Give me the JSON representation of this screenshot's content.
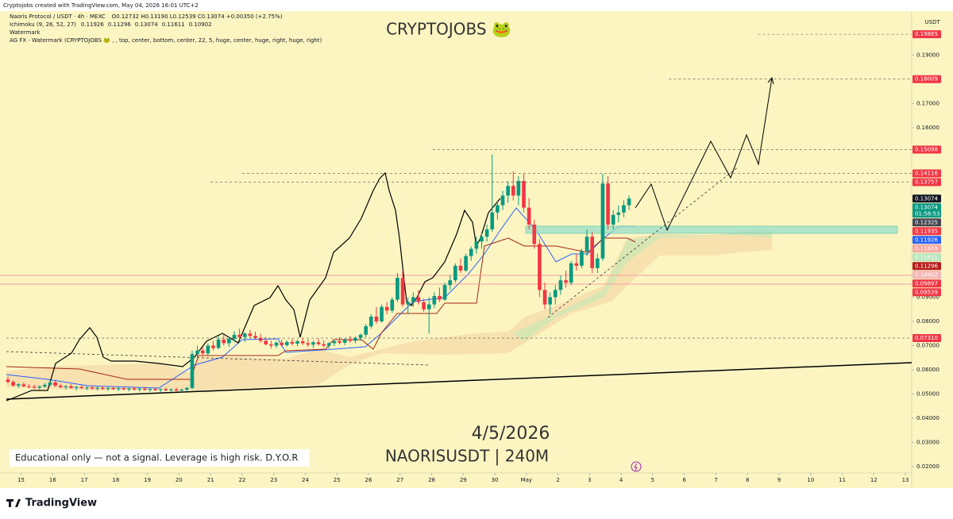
{
  "header": {
    "credit": "Cryptojobs created with TradingView.com, May 04, 2026 16:01 UTC+2",
    "symbol": "Naoris Protocol / USDT · 4h · MEXC",
    "ohlc": "O0.12732 H0.13190 L0.12539 C0.13074 +0.00350 (+2.75%)",
    "ichimoku": {
      "name": "Ichimoku (9, 26, 52, 27)",
      "values": [
        {
          "text": "0.11926",
          "color": "#2962ff"
        },
        {
          "text": "0.11296",
          "color": "#b71c1c"
        },
        {
          "text": "0.13074",
          "color": "#43a047"
        },
        {
          "text": "0.11611",
          "color": "#a5d6a7"
        },
        {
          "text": "0.10902",
          "color": "#ef9a9a"
        }
      ]
    },
    "watermark": "Watermark",
    "agfx": "AG FX - Watermark (CRYPTOJOBS 🐸 , , top, center, bottom, center, 22, 5, huge, center, huge, right, huge, right)",
    "currency": "USDT"
  },
  "watermark_title": "CRYPTOJOBS 🐸",
  "date_text": "4/5/2026",
  "pair_text": "NAORISUSDT | 240M",
  "disclaimer": "Educational only — not a signal. Leverage is high risk. D.Y.O.R",
  "footer": "TradingView",
  "chart_data": {
    "type": "candlestick",
    "up_color": "#089981",
    "down_color": "#f23645",
    "grid": false,
    "xlim": [
      -0.3,
      171.7
    ],
    "xticks": [
      {
        "value": 2.5,
        "label": "15"
      },
      {
        "value": 8.5,
        "label": "16"
      },
      {
        "value": 14.5,
        "label": "17"
      },
      {
        "value": 20.5,
        "label": "18"
      },
      {
        "value": 26.5,
        "label": "19"
      },
      {
        "value": 32.5,
        "label": "20"
      },
      {
        "value": 38.5,
        "label": "21"
      },
      {
        "value": 44.5,
        "label": "22"
      },
      {
        "value": 50.5,
        "label": "23"
      },
      {
        "value": 56.5,
        "label": "24"
      },
      {
        "value": 62.5,
        "label": "25"
      },
      {
        "value": 68.5,
        "label": "26"
      },
      {
        "value": 74.5,
        "label": "27"
      },
      {
        "value": 80.5,
        "label": "28"
      },
      {
        "value": 86.5,
        "label": "29"
      },
      {
        "value": 92.5,
        "label": "30"
      },
      {
        "value": 98.5,
        "label": "May"
      },
      {
        "value": 104.5,
        "label": "2"
      },
      {
        "value": 110.5,
        "label": "3"
      },
      {
        "value": 116.5,
        "label": "4"
      },
      {
        "value": 122.5,
        "label": "5"
      },
      {
        "value": 128.5,
        "label": "6"
      },
      {
        "value": 134.5,
        "label": "7"
      },
      {
        "value": 140.5,
        "label": "8"
      },
      {
        "value": 146.5,
        "label": "9"
      },
      {
        "value": 152.5,
        "label": "10"
      },
      {
        "value": 158.5,
        "label": "11"
      },
      {
        "value": 164.5,
        "label": "12"
      },
      {
        "value": 170.5,
        "label": "13"
      }
    ],
    "ylim": [
      0.01115,
      0.2082
    ],
    "yticks": [
      {
        "value": 0.19,
        "label": "0.19000"
      },
      {
        "value": 0.17,
        "label": "0.17000"
      },
      {
        "value": 0.16,
        "label": "0.16000"
      },
      {
        "value": 0.09,
        "label": "0.09000"
      },
      {
        "value": 0.08,
        "label": "0.08000"
      },
      {
        "value": 0.07,
        "label": "0.07000"
      },
      {
        "value": 0.06,
        "label": "0.06000"
      },
      {
        "value": 0.05,
        "label": "0.05000"
      },
      {
        "value": 0.04,
        "label": "0.04000"
      },
      {
        "value": 0.03,
        "label": "0.03000"
      },
      {
        "value": 0.02,
        "label": "0.02000"
      }
    ],
    "price_labels": [
      {
        "value": 0.19865,
        "label": "0.19865",
        "color": "#f23645",
        "from": 142.5
      },
      {
        "value": 0.18009,
        "label": "0.18009",
        "color": "#f23645",
        "from": 125.6
      },
      {
        "value": 0.15098,
        "label": "0.15098",
        "color": "#f23645",
        "from": 80.7
      },
      {
        "value": 0.14116,
        "label": "0.14116",
        "color": "#f23645",
        "from": 44.5
      },
      {
        "value": 0.13757,
        "label": "0.13757",
        "color": "#f23645",
        "from": 38.5
      },
      {
        "value": 0.13074,
        "label": "0.13074",
        "color": "#131722"
      },
      {
        "value": 0.13074,
        "label": "0.13074",
        "color": "#089981",
        "countdown": "01:58:53"
      },
      {
        "value": 0.12325,
        "label": "0.12325",
        "color": "#434651"
      },
      {
        "value": 0.11935,
        "label": "0.11935",
        "color": "#f23645"
      },
      {
        "value": 0.11926,
        "label": "0.11926",
        "color": "#2962ff"
      },
      {
        "value": 0.11659,
        "label": "0.11659",
        "color": "#f7a8a0"
      },
      {
        "value": 0.11611,
        "label": "0.11611",
        "color": "#b9e4bc"
      },
      {
        "value": 0.11296,
        "label": "0.11296",
        "color": "#b71c1c"
      },
      {
        "value": 0.10902,
        "label": "0.10902",
        "color": "#f5b5b5"
      },
      {
        "value": 0.09897,
        "label": "0.09897",
        "color": "#f23645"
      },
      {
        "value": 0.09539,
        "label": "0.09539",
        "color": "#f23645"
      },
      {
        "value": 0.0731,
        "label": "0.07310",
        "color": "#f23645",
        "from": -0.3
      }
    ],
    "candles": [
      [
        0.056,
        0.0572,
        0.0545,
        0.055
      ],
      [
        0.055,
        0.0556,
        0.053,
        0.0535
      ],
      [
        0.0535,
        0.0545,
        0.0525,
        0.054
      ],
      [
        0.054,
        0.0548,
        0.0528,
        0.0532
      ],
      [
        0.0532,
        0.054,
        0.0522,
        0.053
      ],
      [
        0.053,
        0.0538,
        0.052,
        0.0526
      ],
      [
        0.0526,
        0.0535,
        0.0518,
        0.0531
      ],
      [
        0.0531,
        0.0545,
        0.0525,
        0.0538
      ],
      [
        0.0538,
        0.056,
        0.0532,
        0.0548
      ],
      [
        0.0548,
        0.0555,
        0.053,
        0.0534
      ],
      [
        0.0534,
        0.0542,
        0.0524,
        0.0528
      ],
      [
        0.0528,
        0.0536,
        0.0518,
        0.0532
      ],
      [
        0.0532,
        0.054,
        0.0522,
        0.0525
      ],
      [
        0.0525,
        0.0533,
        0.0515,
        0.0529
      ],
      [
        0.0529,
        0.0538,
        0.0521,
        0.0524
      ],
      [
        0.0524,
        0.0532,
        0.0516,
        0.0527
      ],
      [
        0.0527,
        0.0534,
        0.0519,
        0.0522
      ],
      [
        0.0522,
        0.053,
        0.0514,
        0.0526
      ],
      [
        0.0526,
        0.0533,
        0.0518,
        0.0521
      ],
      [
        0.0521,
        0.0529,
        0.0513,
        0.0525
      ],
      [
        0.0525,
        0.0532,
        0.0517,
        0.052
      ],
      [
        0.052,
        0.0528,
        0.0512,
        0.0524
      ],
      [
        0.0524,
        0.0531,
        0.0516,
        0.0519
      ],
      [
        0.0519,
        0.0527,
        0.0511,
        0.0523
      ],
      [
        0.0523,
        0.053,
        0.0515,
        0.0518
      ],
      [
        0.0518,
        0.0526,
        0.051,
        0.0522
      ],
      [
        0.0522,
        0.0529,
        0.0514,
        0.0517
      ],
      [
        0.0517,
        0.0525,
        0.0509,
        0.0521
      ],
      [
        0.0521,
        0.0528,
        0.0513,
        0.0516
      ],
      [
        0.0516,
        0.0524,
        0.0508,
        0.052
      ],
      [
        0.052,
        0.0527,
        0.0512,
        0.0515
      ],
      [
        0.0515,
        0.0523,
        0.0507,
        0.0519
      ],
      [
        0.0519,
        0.0526,
        0.0511,
        0.0514
      ],
      [
        0.0514,
        0.0522,
        0.0506,
        0.0518
      ],
      [
        0.0518,
        0.053,
        0.051,
        0.0525
      ],
      [
        0.0525,
        0.068,
        0.052,
        0.0665
      ],
      [
        0.0665,
        0.07,
        0.064,
        0.068
      ],
      [
        0.068,
        0.0695,
        0.0655,
        0.0668
      ],
      [
        0.0668,
        0.071,
        0.066,
        0.07
      ],
      [
        0.07,
        0.072,
        0.068,
        0.069
      ],
      [
        0.069,
        0.074,
        0.0685,
        0.0725
      ],
      [
        0.0725,
        0.0745,
        0.07,
        0.071
      ],
      [
        0.071,
        0.0735,
        0.0695,
        0.0728
      ],
      [
        0.0728,
        0.076,
        0.0715,
        0.0745
      ],
      [
        0.0745,
        0.077,
        0.0725,
        0.0735
      ],
      [
        0.0735,
        0.0755,
        0.0715,
        0.075
      ],
      [
        0.075,
        0.0765,
        0.073,
        0.074
      ],
      [
        0.074,
        0.0758,
        0.0725,
        0.0732
      ],
      [
        0.0732,
        0.0748,
        0.0712,
        0.072
      ],
      [
        0.072,
        0.0735,
        0.07,
        0.0705
      ],
      [
        0.0705,
        0.072,
        0.0688,
        0.07
      ],
      [
        0.07,
        0.0718,
        0.069,
        0.0712
      ],
      [
        0.0712,
        0.0725,
        0.0695,
        0.0702
      ],
      [
        0.0702,
        0.0722,
        0.0696,
        0.0715
      ],
      [
        0.0715,
        0.0728,
        0.07,
        0.0708
      ],
      [
        0.0708,
        0.0725,
        0.0698,
        0.0718
      ],
      [
        0.0718,
        0.073,
        0.0702,
        0.071
      ],
      [
        0.071,
        0.0726,
        0.0695,
        0.0704
      ],
      [
        0.0704,
        0.072,
        0.069,
        0.0714
      ],
      [
        0.0714,
        0.0728,
        0.07,
        0.0706
      ],
      [
        0.0706,
        0.0722,
        0.0692,
        0.07
      ],
      [
        0.07,
        0.0716,
        0.0688,
        0.071
      ],
      [
        0.071,
        0.0725,
        0.0698,
        0.0718
      ],
      [
        0.0718,
        0.0735,
        0.0705,
        0.0712
      ],
      [
        0.0712,
        0.073,
        0.0702,
        0.0725
      ],
      [
        0.0725,
        0.074,
        0.0712,
        0.072
      ],
      [
        0.072,
        0.0738,
        0.071,
        0.0732
      ],
      [
        0.0732,
        0.075,
        0.072,
        0.0745
      ],
      [
        0.0745,
        0.079,
        0.0735,
        0.078
      ],
      [
        0.078,
        0.083,
        0.077,
        0.082
      ],
      [
        0.082,
        0.086,
        0.079,
        0.08
      ],
      [
        0.08,
        0.087,
        0.0795,
        0.086
      ],
      [
        0.086,
        0.088,
        0.083,
        0.0845
      ],
      [
        0.0845,
        0.09,
        0.0835,
        0.089
      ],
      [
        0.089,
        0.1,
        0.088,
        0.098
      ],
      [
        0.098,
        0.101,
        0.086,
        0.087
      ],
      [
        0.087,
        0.09,
        0.083,
        0.088
      ],
      [
        0.088,
        0.092,
        0.086,
        0.09
      ],
      [
        0.09,
        0.093,
        0.087,
        0.088
      ],
      [
        0.088,
        0.0895,
        0.084,
        0.085
      ],
      [
        0.085,
        0.09,
        0.075,
        0.087
      ],
      [
        0.087,
        0.092,
        0.0855,
        0.0905
      ],
      [
        0.0905,
        0.094,
        0.088,
        0.089
      ],
      [
        0.089,
        0.096,
        0.0885,
        0.095
      ],
      [
        0.095,
        0.099,
        0.093,
        0.097
      ],
      [
        0.097,
        0.104,
        0.096,
        0.103
      ],
      [
        0.103,
        0.106,
        0.1,
        0.101
      ],
      [
        0.101,
        0.108,
        0.1005,
        0.107
      ],
      [
        0.107,
        0.111,
        0.105,
        0.11
      ],
      [
        0.11,
        0.115,
        0.108,
        0.113
      ],
      [
        0.113,
        0.117,
        0.11,
        0.115
      ],
      [
        0.115,
        0.12,
        0.113,
        0.118
      ],
      [
        0.118,
        0.149,
        0.117,
        0.125
      ],
      [
        0.125,
        0.13,
        0.122,
        0.128
      ],
      [
        0.128,
        0.134,
        0.126,
        0.132
      ],
      [
        0.132,
        0.138,
        0.129,
        0.136
      ],
      [
        0.136,
        0.142,
        0.13,
        0.132
      ],
      [
        0.132,
        0.14,
        0.128,
        0.138
      ],
      [
        0.138,
        0.141,
        0.125,
        0.127
      ],
      [
        0.127,
        0.131,
        0.118,
        0.12
      ],
      [
        0.12,
        0.122,
        0.11,
        0.112
      ],
      [
        0.112,
        0.114,
        0.09,
        0.093
      ],
      [
        0.093,
        0.096,
        0.085,
        0.087
      ],
      [
        0.087,
        0.092,
        0.083,
        0.09
      ],
      [
        0.09,
        0.095,
        0.087,
        0.093
      ],
      [
        0.093,
        0.099,
        0.091,
        0.097
      ],
      [
        0.097,
        0.101,
        0.094,
        0.096
      ],
      [
        0.096,
        0.105,
        0.095,
        0.104
      ],
      [
        0.104,
        0.108,
        0.101,
        0.103
      ],
      [
        0.103,
        0.11,
        0.102,
        0.109
      ],
      [
        0.109,
        0.118,
        0.107,
        0.115
      ],
      [
        0.115,
        0.117,
        0.1,
        0.102
      ],
      [
        0.102,
        0.108,
        0.1,
        0.106
      ],
      [
        0.106,
        0.141,
        0.105,
        0.137
      ],
      [
        0.137,
        0.14,
        0.118,
        0.12
      ],
      [
        0.12,
        0.126,
        0.118,
        0.124
      ],
      [
        0.124,
        0.128,
        0.121,
        0.125
      ],
      [
        0.125,
        0.13,
        0.123,
        0.128
      ],
      [
        0.128,
        0.132,
        0.126,
        0.13074
      ]
    ]
  }
}
